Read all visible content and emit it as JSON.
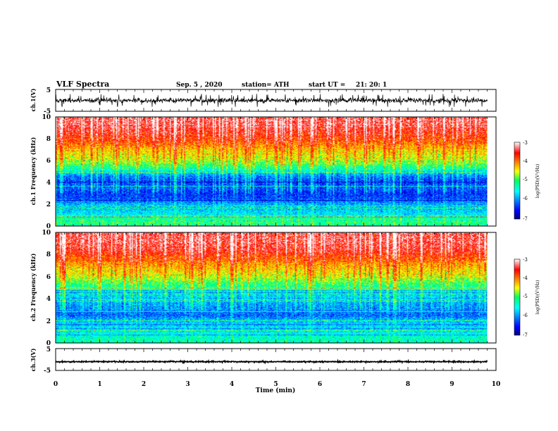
{
  "header": {
    "title": "VLF Spectra",
    "date": "Sep. 5 , 2020",
    "station": "station= ATH",
    "start": "start UT =",
    "start_time": "21: 20: 1"
  },
  "chart_data": [
    {
      "type": "line",
      "id": "ch1-waveform",
      "ylabel": "ch.1(V)",
      "ylim": [
        -5,
        5
      ],
      "yticks": [
        "5",
        "-5"
      ],
      "xlim": [
        0,
        10
      ],
      "x_end": 9.8,
      "description": "dense noisy waveform centred near 0 V, excursions to about +2 / -3 V",
      "baseline": 0,
      "amplitude_typical": 1.5,
      "amplitude_max": 3
    },
    {
      "type": "heatmap",
      "id": "ch1-spectrogram",
      "ylabel": "ch.1 Frequency (kHz)",
      "ylim": [
        0,
        10
      ],
      "yticks": [
        "0",
        "2",
        "4",
        "6",
        "8",
        "10"
      ],
      "xlim": [
        0,
        10
      ],
      "x_end": 9.8,
      "colorbar": {
        "label": "log(PSD)(V²/Hz)",
        "range": [
          -7,
          -3
        ],
        "ticks": [
          "-3",
          "-4",
          "-5",
          "-6",
          "-7"
        ]
      },
      "freq_profile_kHz": [
        0,
        0.5,
        1,
        1.5,
        2,
        2.5,
        3,
        3.5,
        4,
        4.5,
        5,
        5.5,
        6,
        6.5,
        7,
        7.5,
        8,
        8.5,
        9,
        9.5,
        10
      ],
      "log_psd_profile": [
        -5.2,
        -5.0,
        -5.6,
        -5.8,
        -5.9,
        -6.3,
        -6.4,
        -6.2,
        -6.3,
        -6.1,
        -5.6,
        -5.0,
        -4.7,
        -4.5,
        -4.3,
        -4.0,
        -3.8,
        -3.6,
        -3.5,
        -3.4,
        -3.4
      ]
    },
    {
      "type": "heatmap",
      "id": "ch2-spectrogram",
      "ylabel": "ch.2 Frequency (kHz)",
      "ylim": [
        0,
        10
      ],
      "yticks": [
        "0",
        "2",
        "4",
        "6",
        "8",
        "10"
      ],
      "xlim": [
        0,
        10
      ],
      "x_end": 9.8,
      "colorbar": {
        "label": "log(PSD)(V²/Hz)",
        "range": [
          -7,
          -3
        ],
        "ticks": [
          "-3",
          "-4",
          "-5",
          "-6",
          "-7"
        ]
      },
      "freq_profile_kHz": [
        0,
        0.5,
        1,
        1.5,
        2,
        2.5,
        3,
        3.5,
        4,
        4.5,
        5,
        5.5,
        6,
        6.5,
        7,
        7.5,
        8,
        8.5,
        9,
        9.5,
        10
      ],
      "log_psd_profile": [
        -5.3,
        -5.4,
        -5.6,
        -5.7,
        -5.8,
        -6.2,
        -6.0,
        -5.9,
        -5.8,
        -5.6,
        -5.2,
        -4.9,
        -4.6,
        -4.4,
        -4.2,
        -3.9,
        -3.7,
        -3.5,
        -3.4,
        -3.4,
        -3.4
      ]
    },
    {
      "type": "line",
      "id": "ch3-waveform",
      "ylabel": "ch.3(V)",
      "ylim": [
        -5,
        5
      ],
      "yticks": [
        "5",
        "-5"
      ],
      "xlim": [
        0,
        10
      ],
      "x_end": 9.8,
      "description": "thick flat trace near -1 V",
      "baseline": -1,
      "amplitude_typical": 0.3,
      "amplitude_max": 0.4
    }
  ],
  "xaxis": {
    "label": "Time (min)",
    "ticks": [
      "0",
      "1",
      "2",
      "3",
      "4",
      "5",
      "6",
      "7",
      "8",
      "9",
      "10"
    ]
  },
  "colors": {
    "axis": "#000000",
    "trace": "#000000",
    "background": "#ffffff"
  }
}
